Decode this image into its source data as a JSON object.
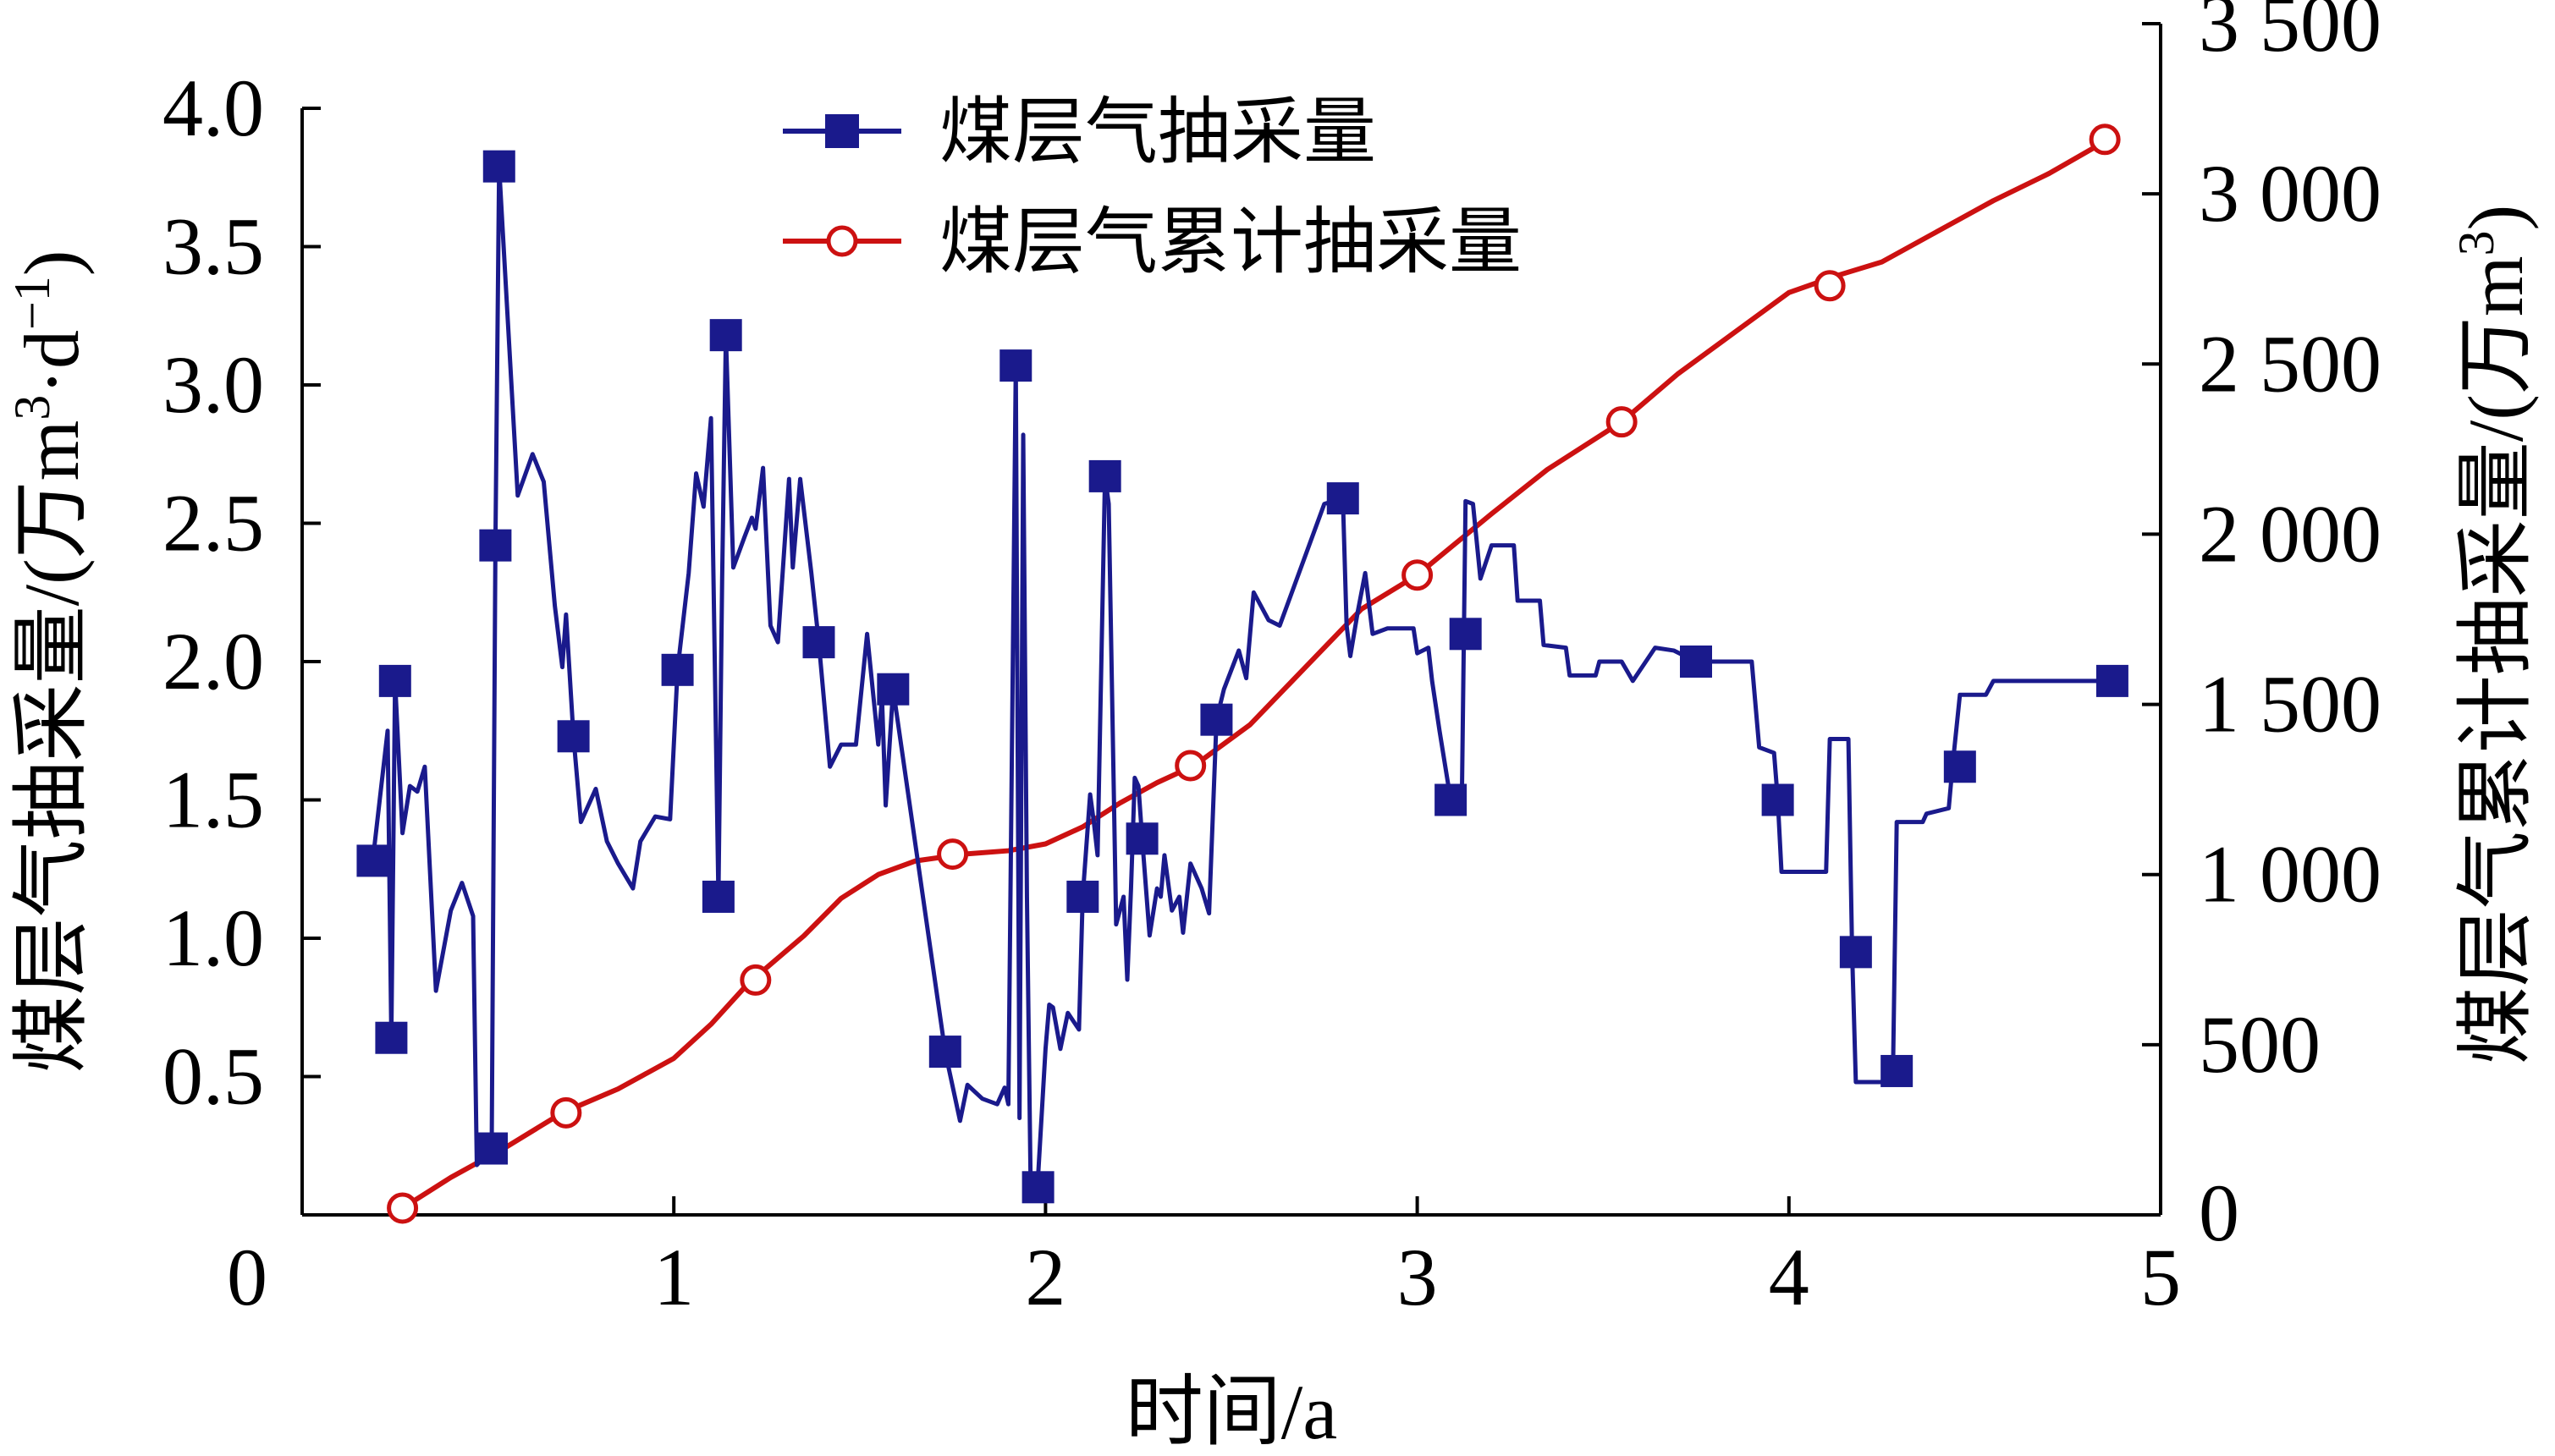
{
  "chart_data": {
    "type": "line",
    "xlabel": "时间/a",
    "ylabel_left": "煤层气抽采量/(万m³·d⁻¹)",
    "ylabel_left_parts": {
      "base": "煤层气抽采量/(万m",
      "sup1": "3",
      "mid": "·d",
      "sup2": "−1",
      "end": ")"
    },
    "ylabel_right": "煤层气累计抽采量/(万m³)",
    "ylabel_right_parts": {
      "base": "煤层气累计抽采量/(万m",
      "sup1": "3",
      "end": ")"
    },
    "xlim": [
      0,
      5
    ],
    "ylim_left": [
      0,
      4.0
    ],
    "ylim_right": [
      0,
      3500
    ],
    "x_ticks": [
      "0",
      "1",
      "2",
      "3",
      "4",
      "5"
    ],
    "y_left_ticks": [
      "0.5",
      "1.0",
      "1.5",
      "2.0",
      "2.5",
      "3.0",
      "3.5",
      "4.0"
    ],
    "y_right_ticks": [
      "0",
      "500",
      "1 000",
      "1 500",
      "2 000",
      "2 500",
      "3 000",
      "3 500"
    ],
    "legend_position": "top-center",
    "series": [
      {
        "name": "煤层气抽采量",
        "axis": "left",
        "color": "#1a1a8c",
        "marker": "filled-square",
        "points": [
          [
            0.19,
            1.28
          ],
          [
            0.23,
            1.75
          ],
          [
            0.24,
            0.64
          ],
          [
            0.25,
            1.93
          ],
          [
            0.27,
            1.38
          ],
          [
            0.29,
            1.55
          ],
          [
            0.31,
            1.53
          ],
          [
            0.33,
            1.62
          ],
          [
            0.36,
            0.81
          ],
          [
            0.4,
            1.1
          ],
          [
            0.43,
            1.2
          ],
          [
            0.46,
            1.08
          ],
          [
            0.47,
            0.18
          ],
          [
            0.51,
            0.24
          ],
          [
            0.52,
            2.42
          ],
          [
            0.53,
            3.79
          ],
          [
            0.54,
            3.55
          ],
          [
            0.58,
            2.6
          ],
          [
            0.62,
            2.75
          ],
          [
            0.65,
            2.65
          ],
          [
            0.68,
            2.2
          ],
          [
            0.7,
            1.98
          ],
          [
            0.71,
            2.17
          ],
          [
            0.73,
            1.73
          ],
          [
            0.75,
            1.42
          ],
          [
            0.79,
            1.54
          ],
          [
            0.82,
            1.35
          ],
          [
            0.85,
            1.27
          ],
          [
            0.89,
            1.18
          ],
          [
            0.91,
            1.35
          ],
          [
            0.95,
            1.44
          ],
          [
            0.99,
            1.43
          ],
          [
            1.01,
            1.97
          ],
          [
            1.04,
            2.32
          ],
          [
            1.06,
            2.68
          ],
          [
            1.08,
            2.56
          ],
          [
            1.1,
            2.88
          ],
          [
            1.12,
            1.15
          ],
          [
            1.13,
            2.3
          ],
          [
            1.14,
            3.18
          ],
          [
            1.16,
            2.34
          ],
          [
            1.19,
            2.45
          ],
          [
            1.21,
            2.52
          ],
          [
            1.22,
            2.48
          ],
          [
            1.24,
            2.7
          ],
          [
            1.26,
            2.13
          ],
          [
            1.28,
            2.07
          ],
          [
            1.31,
            2.66
          ],
          [
            1.32,
            2.34
          ],
          [
            1.34,
            2.66
          ],
          [
            1.37,
            2.32
          ],
          [
            1.39,
            2.07
          ],
          [
            1.42,
            1.62
          ],
          [
            1.45,
            1.7
          ],
          [
            1.49,
            1.7
          ],
          [
            1.52,
            2.1
          ],
          [
            1.55,
            1.7
          ],
          [
            1.56,
            1.87
          ],
          [
            1.57,
            1.48
          ],
          [
            1.59,
            1.9
          ],
          [
            1.73,
            0.59
          ],
          [
            1.77,
            0.34
          ],
          [
            1.79,
            0.47
          ],
          [
            1.83,
            0.42
          ],
          [
            1.87,
            0.4
          ],
          [
            1.89,
            0.46
          ],
          [
            1.9,
            0.4
          ],
          [
            1.92,
            3.07
          ],
          [
            1.93,
            0.35
          ],
          [
            1.94,
            2.82
          ],
          [
            1.95,
            1.15
          ],
          [
            1.96,
            0.1
          ],
          [
            1.98,
            0.14
          ],
          [
            2.0,
            0.6
          ],
          [
            2.01,
            0.76
          ],
          [
            2.02,
            0.75
          ],
          [
            2.04,
            0.6
          ],
          [
            2.06,
            0.73
          ],
          [
            2.09,
            0.67
          ],
          [
            2.1,
            1.15
          ],
          [
            2.12,
            1.52
          ],
          [
            2.13,
            1.42
          ],
          [
            2.14,
            1.3
          ],
          [
            2.16,
            2.67
          ],
          [
            2.17,
            2.57
          ],
          [
            2.19,
            1.05
          ],
          [
            2.21,
            1.15
          ],
          [
            2.22,
            0.85
          ],
          [
            2.23,
            1.18
          ],
          [
            2.24,
            1.58
          ],
          [
            2.25,
            1.55
          ],
          [
            2.26,
            1.36
          ],
          [
            2.28,
            1.01
          ],
          [
            2.3,
            1.18
          ],
          [
            2.31,
            1.15
          ],
          [
            2.32,
            1.3
          ],
          [
            2.34,
            1.1
          ],
          [
            2.36,
            1.15
          ],
          [
            2.37,
            1.02
          ],
          [
            2.39,
            1.27
          ],
          [
            2.42,
            1.18
          ],
          [
            2.44,
            1.09
          ],
          [
            2.46,
            1.79
          ],
          [
            2.48,
            1.9
          ],
          [
            2.52,
            2.04
          ],
          [
            2.54,
            1.94
          ],
          [
            2.56,
            2.25
          ],
          [
            2.6,
            2.15
          ],
          [
            2.63,
            2.13
          ],
          [
            2.75,
            2.57
          ],
          [
            2.8,
            2.59
          ],
          [
            2.81,
            2.13
          ],
          [
            2.82,
            2.02
          ],
          [
            2.84,
            2.18
          ],
          [
            2.86,
            2.32
          ],
          [
            2.88,
            2.1
          ],
          [
            2.92,
            2.12
          ],
          [
            2.99,
            2.12
          ],
          [
            3.0,
            2.03
          ],
          [
            3.03,
            2.05
          ],
          [
            3.04,
            1.93
          ],
          [
            3.06,
            1.75
          ],
          [
            3.09,
            1.5
          ],
          [
            3.12,
            1.49
          ],
          [
            3.13,
            2.58
          ],
          [
            3.15,
            2.57
          ],
          [
            3.17,
            2.3
          ],
          [
            3.2,
            2.42
          ],
          [
            3.26,
            2.42
          ],
          [
            3.27,
            2.22
          ],
          [
            3.33,
            2.22
          ],
          [
            3.34,
            2.06
          ],
          [
            3.4,
            2.05
          ],
          [
            3.41,
            1.95
          ],
          [
            3.48,
            1.95
          ],
          [
            3.49,
            2.0
          ],
          [
            3.55,
            2.0
          ],
          [
            3.58,
            1.93
          ],
          [
            3.61,
            1.99
          ],
          [
            3.64,
            2.05
          ],
          [
            3.69,
            2.04
          ],
          [
            3.75,
            2.0
          ],
          [
            3.81,
            2.0
          ],
          [
            3.9,
            2.0
          ],
          [
            3.92,
            1.69
          ],
          [
            3.96,
            1.67
          ],
          [
            3.97,
            1.5
          ],
          [
            3.98,
            1.24
          ],
          [
            4.1,
            1.24
          ],
          [
            4.11,
            1.72
          ],
          [
            4.16,
            1.72
          ],
          [
            4.17,
            0.95
          ],
          [
            4.18,
            0.48
          ],
          [
            4.27,
            0.48
          ],
          [
            4.28,
            0.52
          ],
          [
            4.29,
            1.42
          ],
          [
            4.36,
            1.42
          ],
          [
            4.37,
            1.45
          ],
          [
            4.43,
            1.47
          ],
          [
            4.44,
            1.62
          ],
          [
            4.46,
            1.88
          ],
          [
            4.53,
            1.88
          ],
          [
            4.55,
            1.93
          ],
          [
            4.87,
            1.93
          ]
        ],
        "marker_points": [
          [
            0.19,
            1.28
          ],
          [
            0.24,
            0.64
          ],
          [
            0.25,
            1.93
          ],
          [
            0.51,
            0.24
          ],
          [
            0.52,
            2.42
          ],
          [
            0.53,
            3.79
          ],
          [
            0.73,
            1.73
          ],
          [
            1.01,
            1.97
          ],
          [
            1.12,
            1.15
          ],
          [
            1.14,
            3.18
          ],
          [
            1.39,
            2.07
          ],
          [
            1.59,
            1.9
          ],
          [
            1.73,
            0.59
          ],
          [
            1.92,
            3.07
          ],
          [
            1.98,
            0.1
          ],
          [
            2.1,
            1.15
          ],
          [
            2.16,
            2.67
          ],
          [
            2.26,
            1.36
          ],
          [
            2.46,
            1.79
          ],
          [
            2.8,
            2.59
          ],
          [
            3.09,
            1.5
          ],
          [
            3.13,
            2.1
          ],
          [
            3.75,
            2.0
          ],
          [
            3.97,
            1.5
          ],
          [
            4.18,
            0.95
          ],
          [
            4.29,
            0.52
          ],
          [
            4.46,
            1.62
          ],
          [
            4.87,
            1.93
          ]
        ]
      },
      {
        "name": "煤层气累计抽采量",
        "axis": "right",
        "color": "#cc1111",
        "marker": "open-circle",
        "points": [
          [
            0.27,
            20
          ],
          [
            0.4,
            110
          ],
          [
            0.55,
            200
          ],
          [
            0.7,
            300
          ],
          [
            0.85,
            370
          ],
          [
            1.0,
            460
          ],
          [
            1.1,
            560
          ],
          [
            1.2,
            680
          ],
          [
            1.35,
            820
          ],
          [
            1.45,
            930
          ],
          [
            1.55,
            1000
          ],
          [
            1.65,
            1040
          ],
          [
            1.78,
            1060
          ],
          [
            1.9,
            1070
          ],
          [
            2.0,
            1090
          ],
          [
            2.1,
            1140
          ],
          [
            2.2,
            1210
          ],
          [
            2.3,
            1270
          ],
          [
            2.4,
            1320
          ],
          [
            2.55,
            1440
          ],
          [
            2.7,
            1610
          ],
          [
            2.85,
            1780
          ],
          [
            3.0,
            1880
          ],
          [
            3.1,
            1970
          ],
          [
            3.2,
            2060
          ],
          [
            3.35,
            2190
          ],
          [
            3.55,
            2330
          ],
          [
            3.7,
            2470
          ],
          [
            3.85,
            2590
          ],
          [
            4.0,
            2710
          ],
          [
            4.13,
            2760
          ],
          [
            4.25,
            2800
          ],
          [
            4.4,
            2890
          ],
          [
            4.55,
            2980
          ],
          [
            4.7,
            3060
          ],
          [
            4.86,
            3160
          ]
        ],
        "marker_points": [
          [
            0.27,
            20
          ],
          [
            0.71,
            300
          ],
          [
            1.22,
            690
          ],
          [
            1.75,
            1060
          ],
          [
            2.39,
            1320
          ],
          [
            3.0,
            1880
          ],
          [
            3.55,
            2330
          ],
          [
            4.11,
            2730
          ],
          [
            4.85,
            3160
          ]
        ]
      }
    ]
  }
}
